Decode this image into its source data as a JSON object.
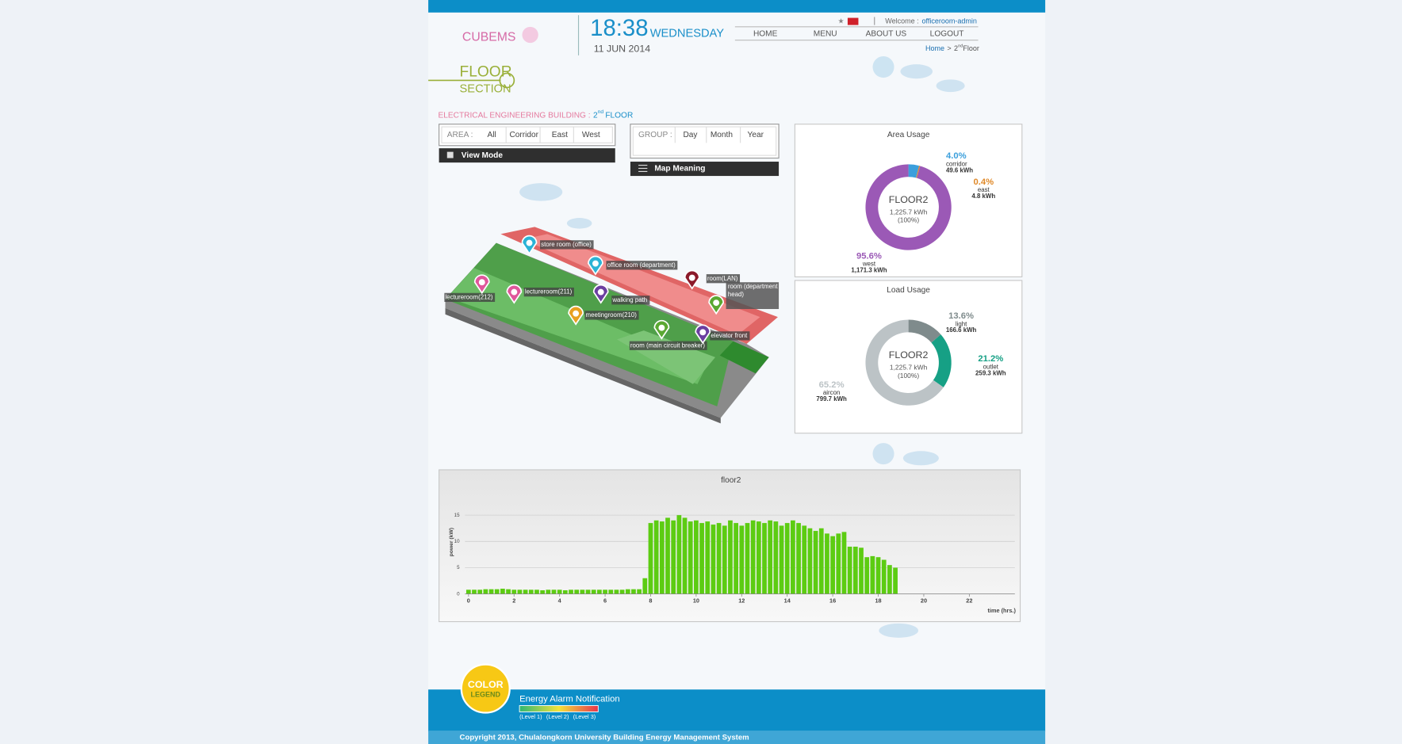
{
  "header": {
    "logo": "CUBEMS",
    "time": "18:38",
    "day": "WEDNESDAY",
    "date": "11 JUN 2014",
    "welcome": "Welcome :",
    "user": "officeroom-admin",
    "nav": [
      "HOME",
      "MENU",
      "ABOUT US",
      "LOGOUT"
    ],
    "breadcrumb": {
      "home": "Home",
      "separator": ">",
      "floor_number": "2",
      "floor_suffix": "nd",
      "floor_word": "Floor"
    }
  },
  "section": {
    "title_top": "FLOOR",
    "title_bottom": "SECTION"
  },
  "building": {
    "name": "ELECTRICAL ENGINEERING BUILDING :",
    "floor_number": "2",
    "floor_suffix": "nd",
    "floor_word": "FLOOR"
  },
  "filters": {
    "area_label": "AREA :",
    "area_options": [
      "All",
      "Corridor",
      "East",
      "West"
    ],
    "group_label": "GROUP :",
    "group_options": [
      "Day",
      "Month",
      "Year"
    ],
    "view_mode": "View Mode",
    "map_meaning": "Map Meaning"
  },
  "map": {
    "rooms": [
      "store room (office)",
      "office room (department)",
      "room(LAN)",
      "room (department head)",
      "lectureroom(212)",
      "lectureroom(211)",
      "walking path",
      "meetingroom(210)",
      "room (main circuit breaker)",
      "elevator front"
    ]
  },
  "chart_data": [
    {
      "type": "pie",
      "title": "Area Usage",
      "center_title": "FLOOR2",
      "center_value": "1,225.7 kWh",
      "center_percent": "(100%)",
      "categories": [
        "corridor",
        "east",
        "west"
      ],
      "values": [
        4.0,
        0.4,
        95.6
      ],
      "value_labels": [
        "4.0%",
        "0.4%",
        "95.6%"
      ],
      "kwh_labels": [
        "49.6 kWh",
        "4.8 kWh",
        "1,171.3 kWh"
      ],
      "colors": [
        "#3b9fdc",
        "#e08a2a",
        "#9b59b6"
      ]
    },
    {
      "type": "pie",
      "title": "Load Usage",
      "center_title": "FLOOR2",
      "center_value": "1,225.7 kWh",
      "center_percent": "(100%)",
      "categories": [
        "light",
        "outlet",
        "aircon"
      ],
      "values": [
        13.6,
        21.2,
        65.2
      ],
      "value_labels": [
        "13.6%",
        "21.2%",
        "65.2%"
      ],
      "kwh_labels": [
        "166.6 kWh",
        "259.3 kWh",
        "799.7 kWh"
      ],
      "colors": [
        "#7f8b8c",
        "#16a085",
        "#bcc3c6"
      ]
    },
    {
      "type": "bar",
      "title": "floor2",
      "xlabel": "time (hrs.)",
      "ylabel": "power (kW)",
      "color": "#5ccc12",
      "grid": true,
      "xlim": [
        0,
        24
      ],
      "xticks": [
        0,
        2,
        4,
        6,
        8,
        10,
        12,
        14,
        16,
        18,
        20,
        22
      ],
      "ylim": [
        0,
        17
      ],
      "yticks": [
        0,
        5,
        10,
        15
      ],
      "x": [
        0,
        0.25,
        0.5,
        0.75,
        1,
        1.25,
        1.5,
        1.75,
        2,
        2.25,
        2.5,
        2.75,
        3,
        3.25,
        3.5,
        3.75,
        4,
        4.25,
        4.5,
        4.75,
        5,
        5.25,
        5.5,
        5.75,
        6,
        6.25,
        6.5,
        6.75,
        7,
        7.25,
        7.5,
        7.75,
        8,
        8.25,
        8.5,
        8.75,
        9,
        9.25,
        9.5,
        9.75,
        10,
        10.25,
        10.5,
        10.75,
        11,
        11.25,
        11.5,
        11.75,
        12,
        12.25,
        12.5,
        12.75,
        13,
        13.25,
        13.5,
        13.75,
        14,
        14.25,
        14.5,
        14.75,
        15,
        15.25,
        15.5,
        15.75,
        16,
        16.25,
        16.5,
        16.75,
        17,
        17.25,
        17.5,
        17.75,
        18,
        18.25,
        18.5,
        18.75
      ],
      "values": [
        0.8,
        0.8,
        0.8,
        0.9,
        0.9,
        0.9,
        1.0,
        0.9,
        0.8,
        0.8,
        0.8,
        0.8,
        0.8,
        0.7,
        0.8,
        0.8,
        0.8,
        0.7,
        0.8,
        0.8,
        0.8,
        0.8,
        0.8,
        0.8,
        0.8,
        0.8,
        0.8,
        0.8,
        0.9,
        0.9,
        0.9,
        3.0,
        13.5,
        14.0,
        13.8,
        14.5,
        14.0,
        15.0,
        14.5,
        13.8,
        14.0,
        13.5,
        13.8,
        13.2,
        13.5,
        13.0,
        14.0,
        13.5,
        13.0,
        13.5,
        14.0,
        13.8,
        13.5,
        14.0,
        13.8,
        13.0,
        13.5,
        14.0,
        13.5,
        13.0,
        12.5,
        12.0,
        12.5,
        11.5,
        11.0,
        11.5,
        11.8,
        9.0,
        9.0,
        8.8,
        7.0,
        7.2,
        7.0,
        6.5,
        5.5,
        5.0
      ]
    }
  ],
  "footer": {
    "legend_badge_top": "COLOR",
    "legend_badge_bottom": "LEGEND",
    "alarm_title": "Energy Alarm Notification",
    "levels": [
      "(Level 1)",
      "(Level 2)",
      "(Level 3)"
    ],
    "copyright": "Copyright 2013, Chulalongkorn University Building Energy Management System"
  }
}
